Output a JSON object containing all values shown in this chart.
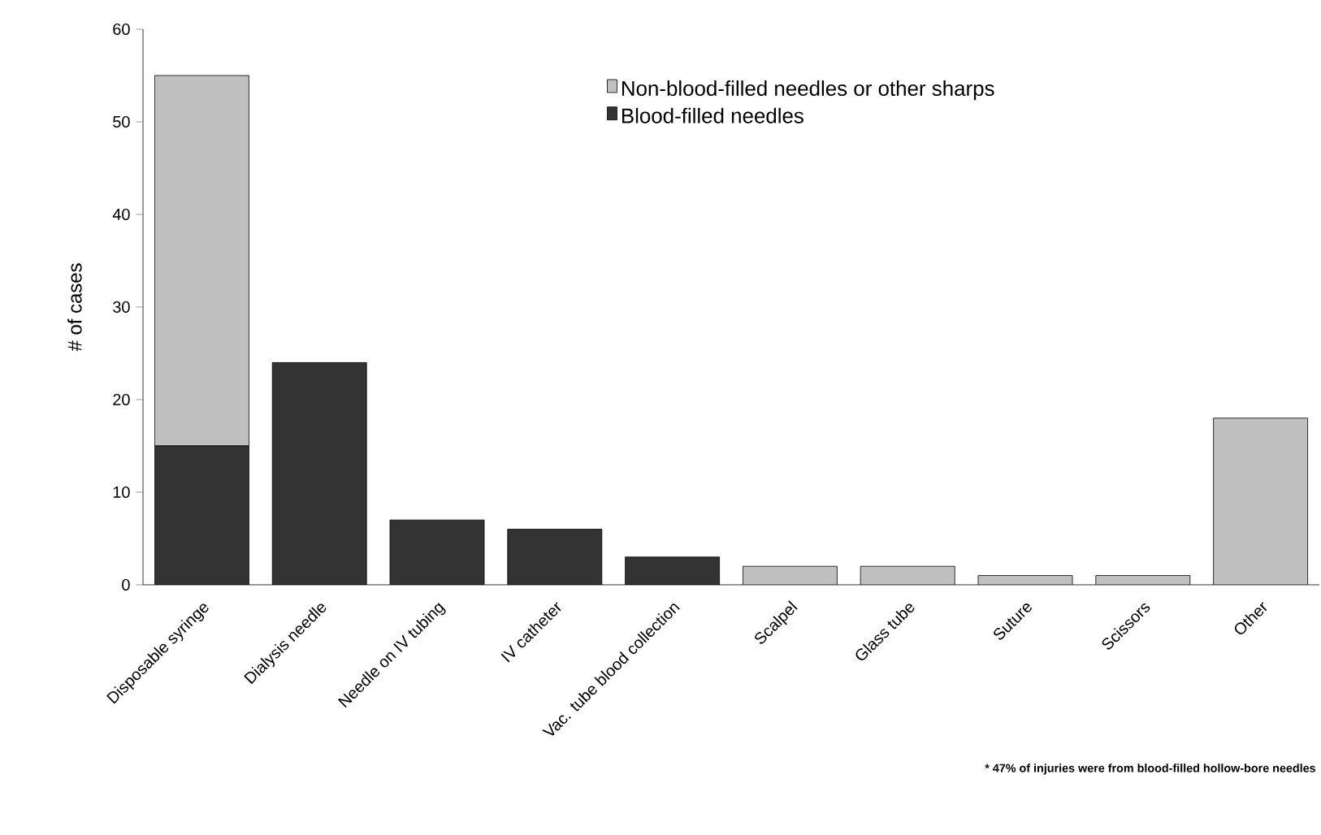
{
  "chart_data": {
    "type": "bar",
    "stacked": true,
    "ylabel": "# of cases",
    "categories": [
      "Disposable syringe",
      "Dialysis needle",
      "Needle on IV tubing",
      "IV catheter",
      "Vac. tube blood collection",
      "Scalpel",
      "Glass tube",
      "Suture",
      "Scissors",
      "Other"
    ],
    "series": [
      {
        "name": "Blood-filled needles",
        "color": "#333333",
        "values": [
          15,
          24,
          7,
          6,
          3,
          0,
          0,
          0,
          0,
          0
        ]
      },
      {
        "name": "Non-blood-filled needles or other sharps",
        "color": "#c0c0c0",
        "values": [
          40,
          0,
          0,
          0,
          0,
          2,
          2,
          1,
          1,
          18
        ]
      }
    ],
    "ylim": [
      0,
      60
    ],
    "yticks": [
      0,
      10,
      20,
      30,
      40,
      50,
      60
    ],
    "legend": "top right",
    "annotations": [
      "* 47% of injuries were from blood-filled hollow-bore needles"
    ]
  }
}
